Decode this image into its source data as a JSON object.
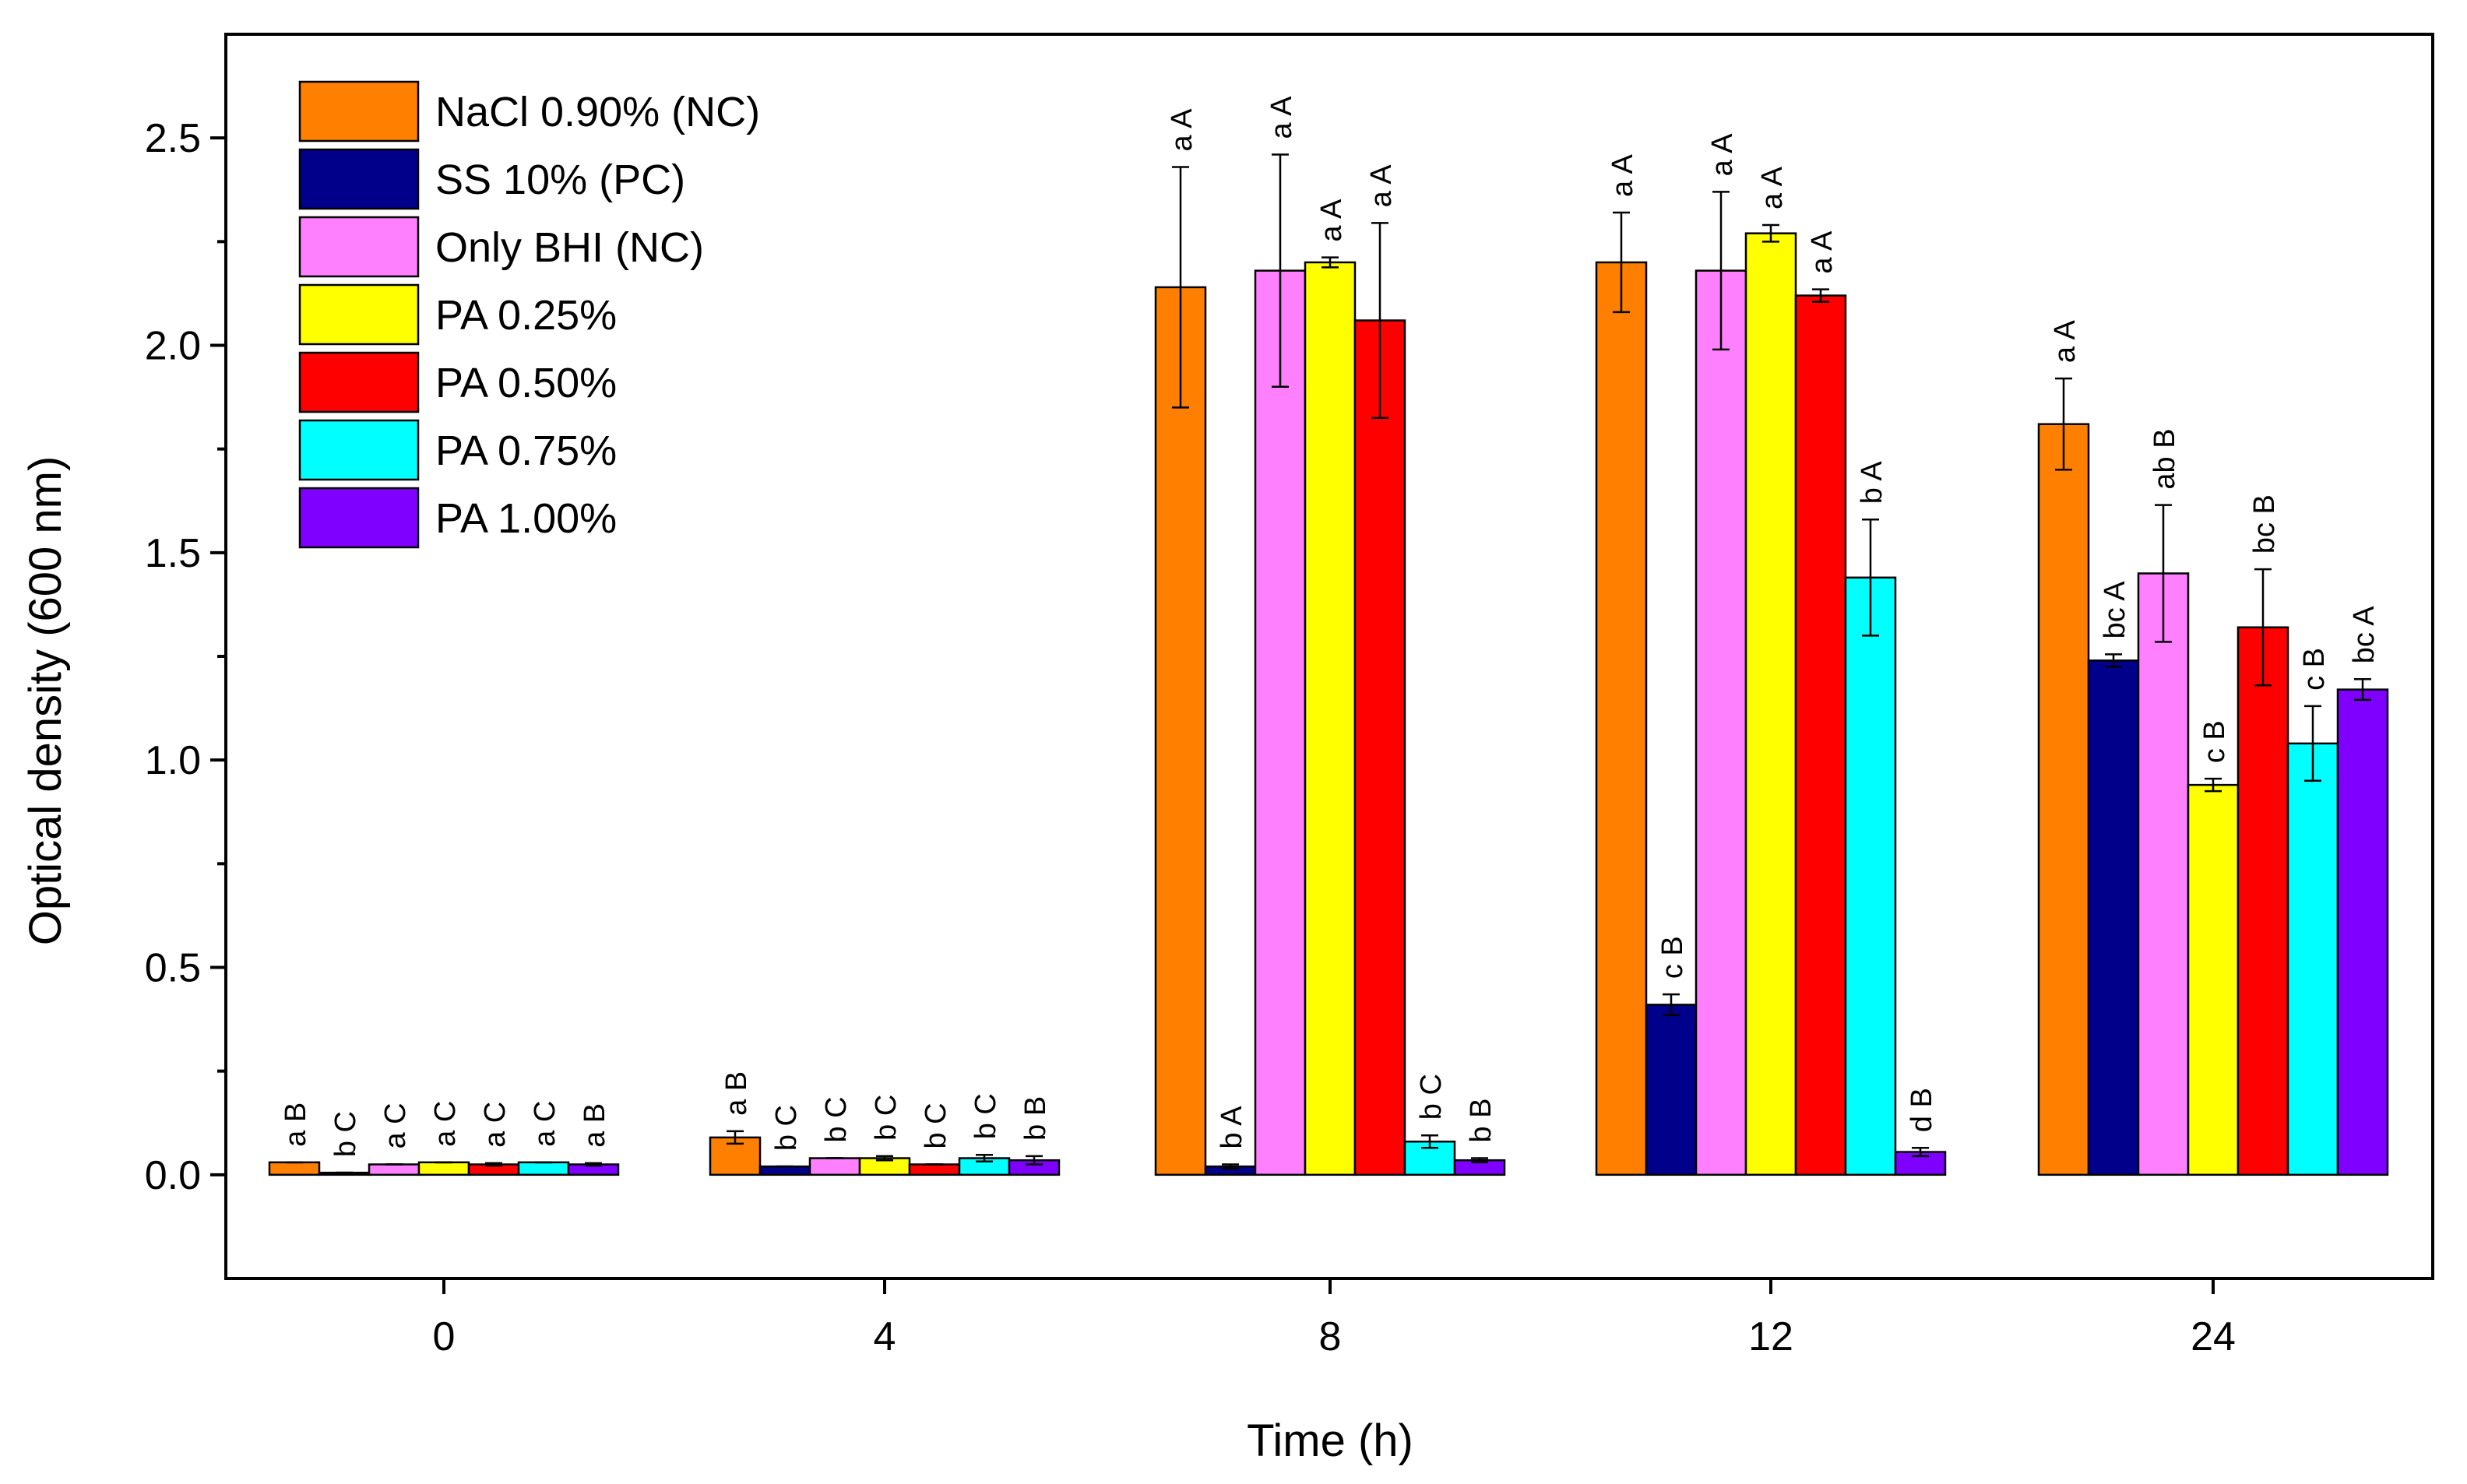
{
  "chart_data": {
    "type": "bar",
    "xlabel": "Time (h)",
    "ylabel": "Optical density (600 nm)",
    "categories": [
      "0",
      "4",
      "8",
      "12",
      "24"
    ],
    "ylim": [
      -0.25,
      2.75
    ],
    "yticks": [
      0.0,
      0.5,
      1.0,
      1.5,
      2.0,
      2.5
    ],
    "ytick_labels": [
      "0.0",
      "0.5",
      "1.0",
      "1.5",
      "2.0",
      "2.5"
    ],
    "legend_position": "top-left",
    "series": [
      {
        "name": "NaCl 0.90% (NC)",
        "color": "#FF8000",
        "values": [
          0.03,
          0.09,
          2.14,
          2.2,
          1.81
        ],
        "errors": [
          0.0,
          0.015,
          0.29,
          0.12,
          0.11
        ],
        "labels": [
          "a B",
          "a B",
          "a A",
          "a A",
          "a A"
        ]
      },
      {
        "name": "SS 10% (PC)",
        "color": "#00008B",
        "values": [
          0.005,
          0.02,
          0.02,
          0.41,
          1.24
        ],
        "errors": [
          0.0,
          0.0,
          0.005,
          0.025,
          0.015
        ],
        "labels": [
          "b C",
          "b C",
          "b A",
          "c B",
          "bc A"
        ]
      },
      {
        "name": "Only BHI (NC)",
        "color": "#FF80FF",
        "values": [
          0.025,
          0.04,
          2.18,
          2.18,
          1.45
        ],
        "errors": [
          0.0,
          0.0,
          0.28,
          0.19,
          0.165
        ],
        "labels": [
          "a C",
          "b C",
          "a A",
          "a A",
          "ab B"
        ]
      },
      {
        "name": "PA 0.25%",
        "color": "#FFFF00",
        "values": [
          0.03,
          0.04,
          2.2,
          2.27,
          0.94
        ],
        "errors": [
          0.0,
          0.005,
          0.012,
          0.02,
          0.015
        ],
        "labels": [
          "a C",
          "b C",
          "a A",
          "a A",
          "c B"
        ]
      },
      {
        "name": "PA 0.50%",
        "color": "#FF0000",
        "values": [
          0.025,
          0.025,
          2.06,
          2.12,
          1.32
        ],
        "errors": [
          0.003,
          0.0,
          0.235,
          0.015,
          0.14
        ],
        "labels": [
          "a C",
          "b C",
          "a A",
          "a A",
          "bc B"
        ]
      },
      {
        "name": "PA 0.75%",
        "color": "#00FFFF",
        "values": [
          0.03,
          0.04,
          0.08,
          1.44,
          1.04
        ],
        "errors": [
          0.0,
          0.008,
          0.015,
          0.14,
          0.09
        ],
        "labels": [
          "a C",
          "b C",
          "b C",
          "b A",
          "c B"
        ]
      },
      {
        "name": "PA 1.00%",
        "color": "#8000FF",
        "values": [
          0.025,
          0.035,
          0.035,
          0.055,
          1.17
        ],
        "errors": [
          0.003,
          0.01,
          0.005,
          0.01,
          0.025
        ],
        "labels": [
          "a B",
          "b B",
          "b B",
          "d B",
          "bc A"
        ]
      }
    ]
  }
}
